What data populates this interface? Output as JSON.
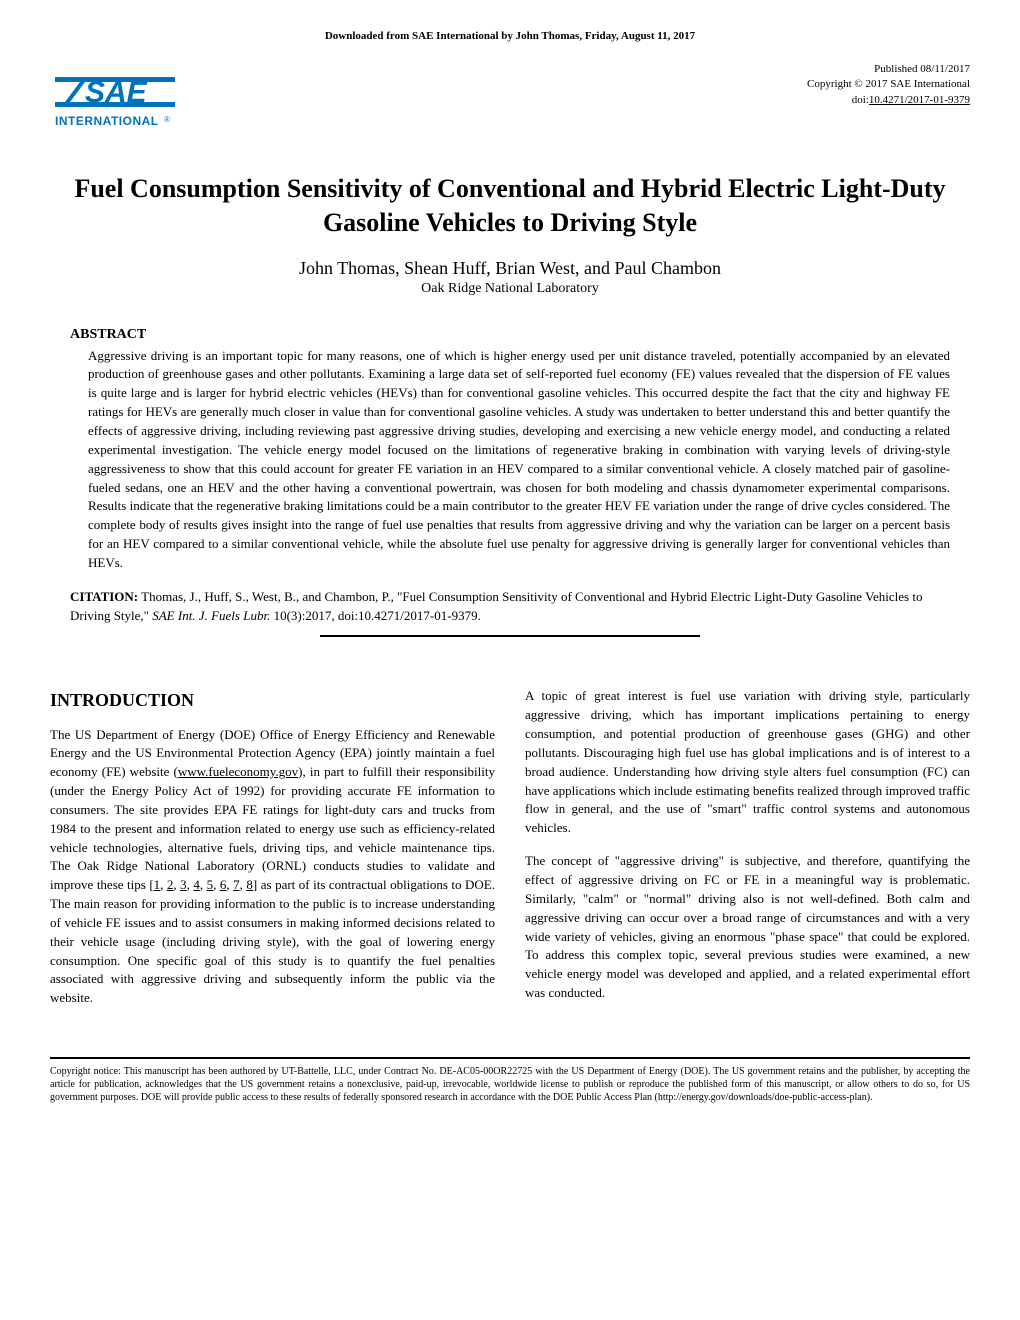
{
  "download_header": "Downloaded from SAE International by John Thomas, Friday, August 11, 2017",
  "pub_info": {
    "published": "Published 08/11/2017",
    "copyright": "Copyright © 2017 SAE International",
    "doi_label": "doi:",
    "doi": "10.4271/2017-01-9379"
  },
  "logo": {
    "sae_color": "#0072bc",
    "text_top": "SAE",
    "text_bottom": "INTERNATIONAL",
    "reg_mark": "®"
  },
  "title": "Fuel Consumption Sensitivity of Conventional and Hybrid Electric Light-Duty Gasoline Vehicles to Driving Style",
  "authors": "John Thomas, Shean Huff, Brian West, and Paul Chambon",
  "affiliation": "Oak Ridge National Laboratory",
  "abstract_heading": "ABSTRACT",
  "abstract_text": "Aggressive driving is an important topic for many reasons, one of which is higher energy used per unit distance traveled, potentially accompanied by an elevated production of greenhouse gases and other pollutants. Examining a large data set of self-reported fuel economy (FE) values revealed that the dispersion of FE values is quite large and is larger for hybrid electric vehicles (HEVs) than for conventional gasoline vehicles. This occurred despite the fact that the city and highway FE ratings for HEVs are generally much closer in value than for conventional gasoline vehicles. A study was undertaken to better understand this and better quantify the effects of aggressive driving, including reviewing past aggressive driving studies, developing and exercising a new vehicle energy model, and conducting a related experimental investigation. The vehicle energy model focused on the limitations of regenerative braking in combination with varying levels of driving-style aggressiveness to show that this could account for greater FE variation in an HEV compared to a similar conventional vehicle. A closely matched pair of gasoline-fueled sedans, one an HEV and the other having a conventional powertrain, was chosen for both modeling and chassis dynamometer experimental comparisons. Results indicate that the regenerative braking limitations could be a main contributor to the greater HEV FE variation under the range of drive cycles considered. The complete body of results gives insight into the range of fuel use penalties that results from aggressive driving and why the variation can be larger on a percent basis for an HEV compared to a similar conventional vehicle, while the absolute fuel use penalty for aggressive driving is generally larger for conventional vehicles than HEVs.",
  "citation": {
    "label": "CITATION:",
    "text_before_journal": " Thomas, J., Huff, S., West, B., and Chambon, P., \"Fuel Consumption Sensitivity of Conventional and Hybrid Electric Light-Duty Gasoline Vehicles to Driving Style,\" ",
    "journal": "SAE Int. J. Fuels Lubr.",
    "text_after_journal": " 10(3):2017, doi:10.4271/2017-01-9379."
  },
  "introduction_heading": "INTRODUCTION",
  "left_col": {
    "p1_before_link": "The US Department of Energy (DOE) Office of Energy Efficiency and Renewable Energy and the US Environmental Protection Agency (EPA) jointly maintain a fuel economy (FE) website (",
    "link1": "www.fueleconomy.gov",
    "p1_after_link": "), in part to fulfill their responsibility (under the Energy Policy Act of 1992) for providing accurate FE information to consumers. The site provides EPA FE ratings for light-duty cars and trucks from 1984 to the present and information related to energy use such as efficiency-related vehicle technologies, alternative fuels, driving tips, and vehicle maintenance tips. The Oak Ridge National Laboratory (ORNL) conducts studies to validate and improve these tips [",
    "refs": [
      "1",
      "2",
      "3",
      "4",
      "5",
      "6",
      "7",
      "8"
    ],
    "p1_after_refs": "] as part of its contractual obligations to DOE. The main reason for providing information to the public is to increase understanding of vehicle FE issues and to assist consumers in making informed decisions related to their vehicle usage (including driving style), with the goal of lowering energy consumption. One specific goal of this study is to quantify the fuel penalties associated with aggressive driving and subsequently inform the public via the website."
  },
  "right_col": {
    "p1": "A topic of great interest is fuel use variation with driving style, particularly aggressive driving, which has important implications pertaining to energy consumption, and potential production of greenhouse gases (GHG) and other pollutants. Discouraging high fuel use has global implications and is of interest to a broad audience. Understanding how driving style alters fuel consumption (FC) can have applications which include estimating benefits realized through improved traffic flow in general, and the use of \"smart\" traffic control systems and autonomous vehicles.",
    "p2": "The concept of \"aggressive driving\" is subjective, and therefore, quantifying the effect of aggressive driving on FC or FE in a meaningful way is problematic. Similarly, \"calm\" or \"normal\" driving also is not well-defined. Both calm and aggressive driving can occur over a broad range of circumstances and with a very wide variety of vehicles, giving an enormous \"phase space\" that could be explored. To address this complex topic, several previous studies were examined, a new vehicle energy model was developed and applied, and a related experimental effort was conducted."
  },
  "copyright_notice": "Copyright notice: This manuscript has been authored by UT-Battelle, LLC, under Contract No. DE-AC05-00OR22725 with the US Department of Energy (DOE). The US government retains and the publisher, by accepting the article for publication, acknowledges that the US government retains a nonexclusive, paid-up, irrevocable, worldwide license to publish or reproduce the published form of this manuscript, or allow others to do so, for US government purposes. DOE will provide public access to these results of federally sponsored research in accordance with the DOE Public Access Plan (http://energy.gov/downloads/doe-public-access-plan)."
}
